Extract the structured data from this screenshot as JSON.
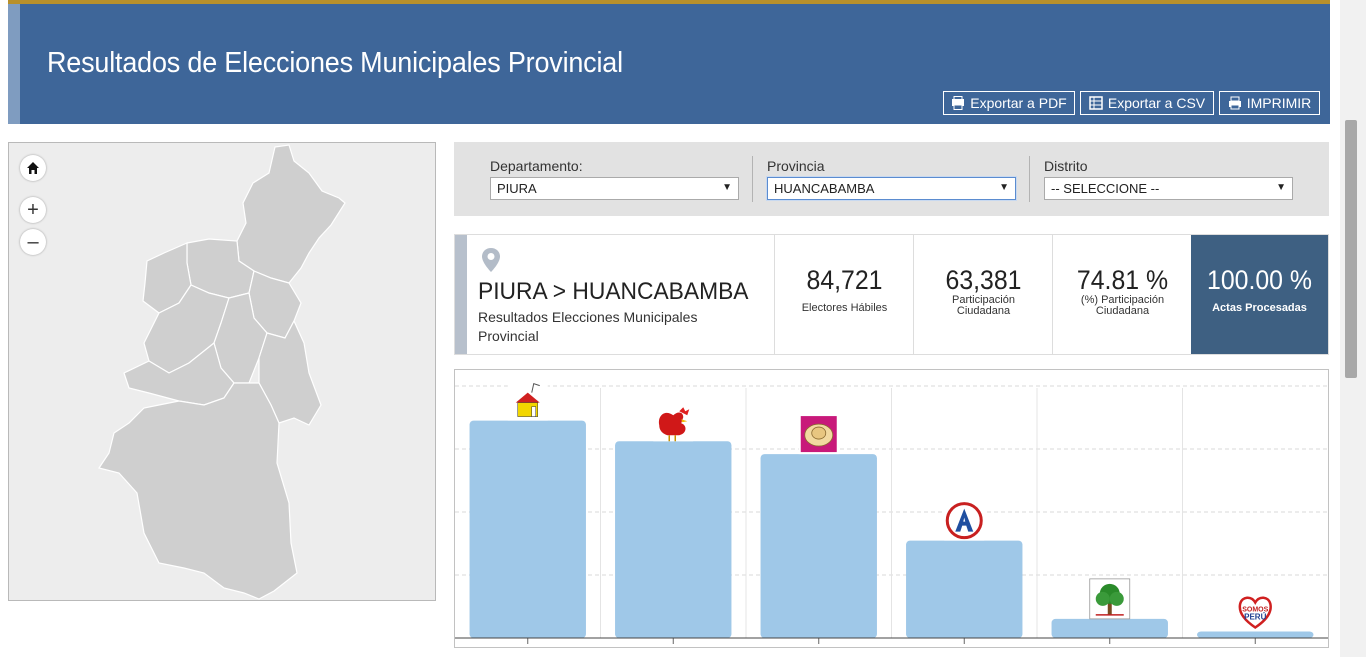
{
  "header": {
    "title": "Resultados de Elecciones Municipales Provincial",
    "buttons": [
      {
        "label": "Exportar a PDF",
        "icon": "pdf-icon"
      },
      {
        "label": "Exportar a CSV",
        "icon": "csv-icon"
      },
      {
        "label": "IMPRIMIR",
        "icon": "print-icon"
      }
    ]
  },
  "map": {
    "controls": [
      "home-icon",
      "zoom-in-icon",
      "zoom-out-icon"
    ],
    "zoom_in_symbol": "+",
    "zoom_out_symbol": "–"
  },
  "filters": {
    "departamento": {
      "label": "Departamento:",
      "value": "PIURA"
    },
    "provincia": {
      "label": "Provincia",
      "value": "HUANCABAMBA"
    },
    "distrito": {
      "label": "Distrito",
      "value": "-- SELECCIONE --"
    }
  },
  "summary": {
    "location": "PIURA > HUANCABAMBA",
    "subtitle": "Resultados Elecciones Municipales Provincial",
    "electores": {
      "value": "84,721",
      "label": "Electores Hábiles"
    },
    "participacion": {
      "value": "63,381",
      "label_line1": "Participación",
      "label_line2": "Ciudadana"
    },
    "porcentaje": {
      "value": "74.81 %",
      "label_line1": "(%) Participación",
      "label_line2": "Ciudadana"
    },
    "actas": {
      "value": "100.00 %",
      "label": "Actas Procesadas"
    }
  },
  "colors": {
    "header_bg": "#3e6699",
    "header_top_accent": "#b8902a",
    "bar_fill": "#9fc8e8",
    "actas_bg": "#3e6082"
  },
  "chart_data": {
    "type": "bar",
    "categories": [
      "house-logo",
      "rooster-logo",
      "hat-logo",
      "a-logo",
      "tree-logo",
      "somos-peru-logo"
    ],
    "values": [
      100,
      90.5,
      84.6,
      44.8,
      8.8,
      3
    ],
    "ylim": [
      0,
      115
    ],
    "grid": true,
    "logo_texts": {
      "somos_peru": [
        "SOMOS",
        "PERÚ"
      ]
    }
  }
}
